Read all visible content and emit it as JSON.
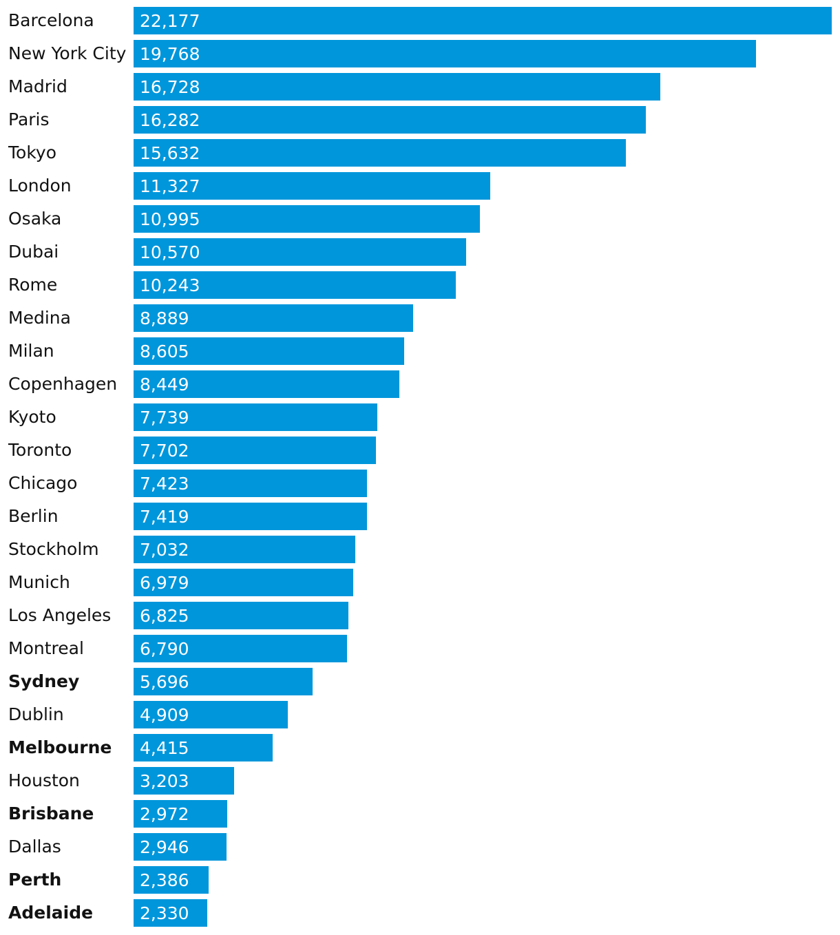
{
  "chart_data": {
    "type": "bar",
    "orientation": "horizontal",
    "title": "",
    "xlabel": "",
    "ylabel": "",
    "xlim": [
      0,
      22177
    ],
    "bar_color": "#0096db",
    "label_color": "#121212",
    "value_label_color": "#ffffff",
    "categories": [
      "Barcelona",
      "New York City",
      "Madrid",
      "Paris",
      "Tokyo",
      "London",
      "Osaka",
      "Dubai",
      "Rome",
      "Medina",
      "Milan",
      "Copenhagen",
      "Kyoto",
      "Toronto",
      "Chicago",
      "Berlin",
      "Stockholm",
      "Munich",
      "Los Angeles",
      "Montreal",
      "Sydney",
      "Dublin",
      "Melbourne",
      "Houston",
      "Brisbane",
      "Dallas",
      "Perth",
      "Adelaide"
    ],
    "values": [
      22177,
      19768,
      16728,
      16282,
      15632,
      11327,
      10995,
      10570,
      10243,
      8889,
      8605,
      8449,
      7739,
      7702,
      7423,
      7419,
      7032,
      6979,
      6825,
      6790,
      5696,
      4909,
      4415,
      3203,
      2972,
      2946,
      2386,
      2330
    ],
    "value_labels": [
      "22,177",
      "19,768",
      "16,728",
      "16,282",
      "15,632",
      "11,327",
      "10,995",
      "10,570",
      "10,243",
      "8,889",
      "8,605",
      "8,449",
      "7,739",
      "7,702",
      "7,423",
      "7,419",
      "7,032",
      "6,979",
      "6,825",
      "6,790",
      "5,696",
      "4,909",
      "4,415",
      "3,203",
      "2,972",
      "2,946",
      "2,386",
      "2,330"
    ],
    "highlighted": [
      "Sydney",
      "Melbourne",
      "Brisbane",
      "Perth",
      "Adelaide"
    ]
  }
}
